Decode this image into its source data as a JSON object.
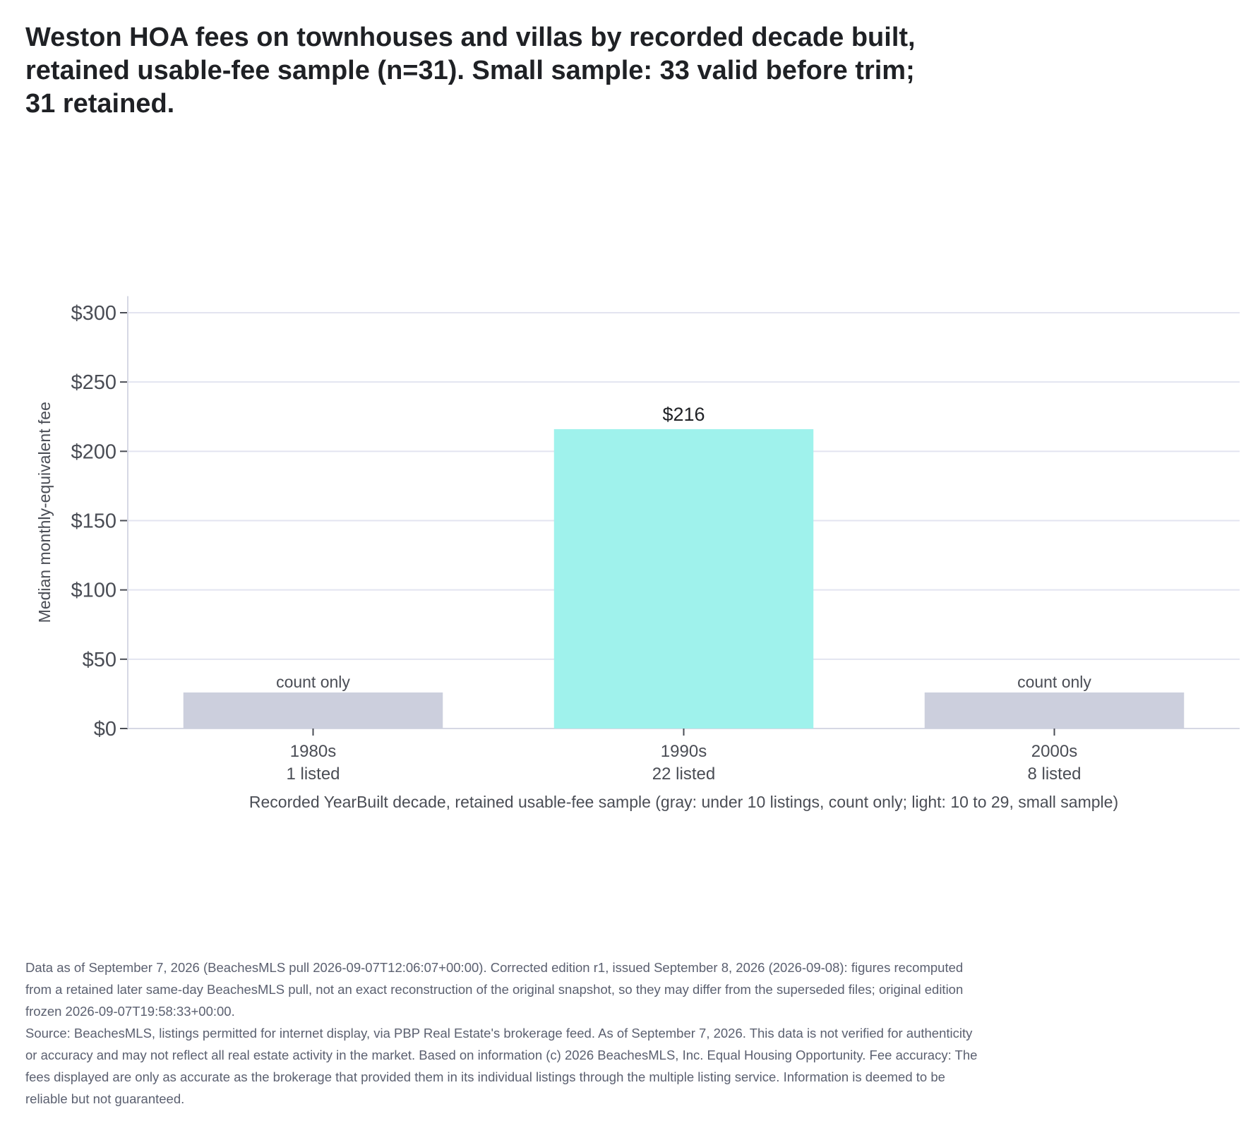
{
  "chart_data": {
    "type": "bar",
    "title": "Weston HOA fees on townhouses and villas by recorded decade built, retained usable-fee sample (n=31). Small sample: 33 valid before trim; 31 retained.",
    "xlabel": "Recorded YearBuilt decade, retained usable-fee sample (gray: under 10 listings, count only; light: 10 to 29, small sample)",
    "ylabel": "Median monthly-equivalent fee",
    "ylim": [
      0,
      312
    ],
    "yticks": [
      0,
      50,
      100,
      150,
      200,
      250,
      300
    ],
    "ytick_labels": [
      "$0",
      "$50",
      "$100",
      "$150",
      "$200",
      "$250",
      "$300"
    ],
    "grid": true,
    "categories": [
      "1980s",
      "1990s",
      "2000s"
    ],
    "counts": [
      "1 listed",
      "22 listed",
      "8 listed"
    ],
    "values": [
      null,
      216,
      null
    ],
    "bar_labels": [
      "count only",
      "$216",
      "count only"
    ],
    "placeholder_value": 26,
    "bar_colors": [
      "#cccfdd",
      "#9ff2ec",
      "#cccfdd"
    ],
    "grid_color": "#e3e4f0",
    "axis_color": "#d6d8e4"
  },
  "notes": [
    "Data as of September 7, 2026 (BeachesMLS pull 2026-09-07T12:06:07+00:00). Corrected edition r1, issued September 8, 2026 (2026-09-08): figures recomputed from a retained later same-day BeachesMLS pull, not an exact reconstruction of the original snapshot, so they may differ from the superseded files; original edition frozen 2026-09-07T19:58:33+00:00.",
    "Source: BeachesMLS, listings permitted for internet display, via PBP Real Estate's brokerage feed. As of September 7, 2026. This data is not verified for authenticity or accuracy and may not reflect all real estate activity in the market. Based on information (c) 2026 BeachesMLS, Inc. Equal Housing Opportunity. Fee accuracy: The fees displayed are only as accurate as the brokerage that provided them in its individual listings through the multiple listing service. Information is deemed to be reliable but not guaranteed."
  ]
}
